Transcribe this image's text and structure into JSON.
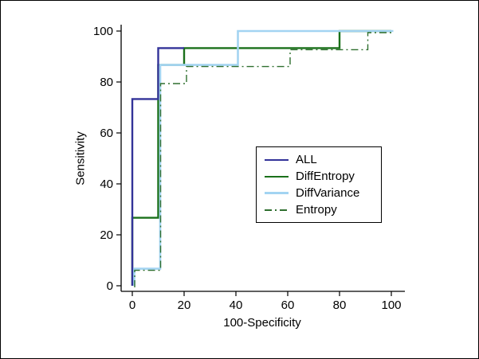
{
  "figure": {
    "background": "#ffffff",
    "border_color": "#000000",
    "axis_color": "#000000"
  },
  "chart_data": {
    "type": "line",
    "subtype": "roc-step-curves",
    "title": "",
    "xlabel": "100-Specificity",
    "ylabel": "Sensitivity",
    "xlim": [
      0,
      100
    ],
    "ylim": [
      0,
      100
    ],
    "x_ticks": [
      0,
      20,
      40,
      60,
      80,
      100
    ],
    "y_ticks": [
      0,
      20,
      40,
      60,
      80,
      100
    ],
    "grid": false,
    "legend_position": "inside-center-right",
    "legend_order": [
      "ALL",
      "DiffEntropy",
      "DiffVariance",
      "Entropy"
    ],
    "series": [
      {
        "name": "DiffEntropy",
        "color": "#1a701a",
        "style": "solid",
        "width": 2.4,
        "points": [
          [
            0,
            0
          ],
          [
            0,
            26.7
          ],
          [
            10,
            26.7
          ],
          [
            10,
            86.7
          ],
          [
            20,
            86.7
          ],
          [
            20,
            93.3
          ],
          [
            80,
            93.3
          ],
          [
            80,
            100
          ],
          [
            100,
            100
          ]
        ]
      },
      {
        "name": "ALL",
        "color": "#333399",
        "style": "solid",
        "width": 2.4,
        "points": [
          [
            0,
            0
          ],
          [
            0,
            73.3
          ],
          [
            10,
            73.3
          ],
          [
            10,
            93.3
          ],
          [
            20,
            93.3
          ]
        ]
      },
      {
        "name": "DiffVariance",
        "color": "#a3d4f2",
        "style": "solid",
        "width": 2.6,
        "points": [
          [
            0,
            0
          ],
          [
            0,
            6.7
          ],
          [
            10,
            6.7
          ],
          [
            10,
            86.7
          ],
          [
            40,
            86.7
          ],
          [
            40,
            100
          ],
          [
            100,
            100
          ]
        ]
      },
      {
        "name": "Entropy",
        "color": "#2f6f2f",
        "style": "dash-dot",
        "width": 1.4,
        "points": [
          [
            0,
            0
          ],
          [
            0,
            6.7
          ],
          [
            10,
            6.7
          ],
          [
            10,
            80
          ],
          [
            20,
            80
          ],
          [
            20,
            86.7
          ],
          [
            60,
            86.7
          ],
          [
            60,
            93.3
          ],
          [
            90,
            93.3
          ],
          [
            90,
            100
          ],
          [
            100,
            100
          ]
        ]
      }
    ]
  }
}
